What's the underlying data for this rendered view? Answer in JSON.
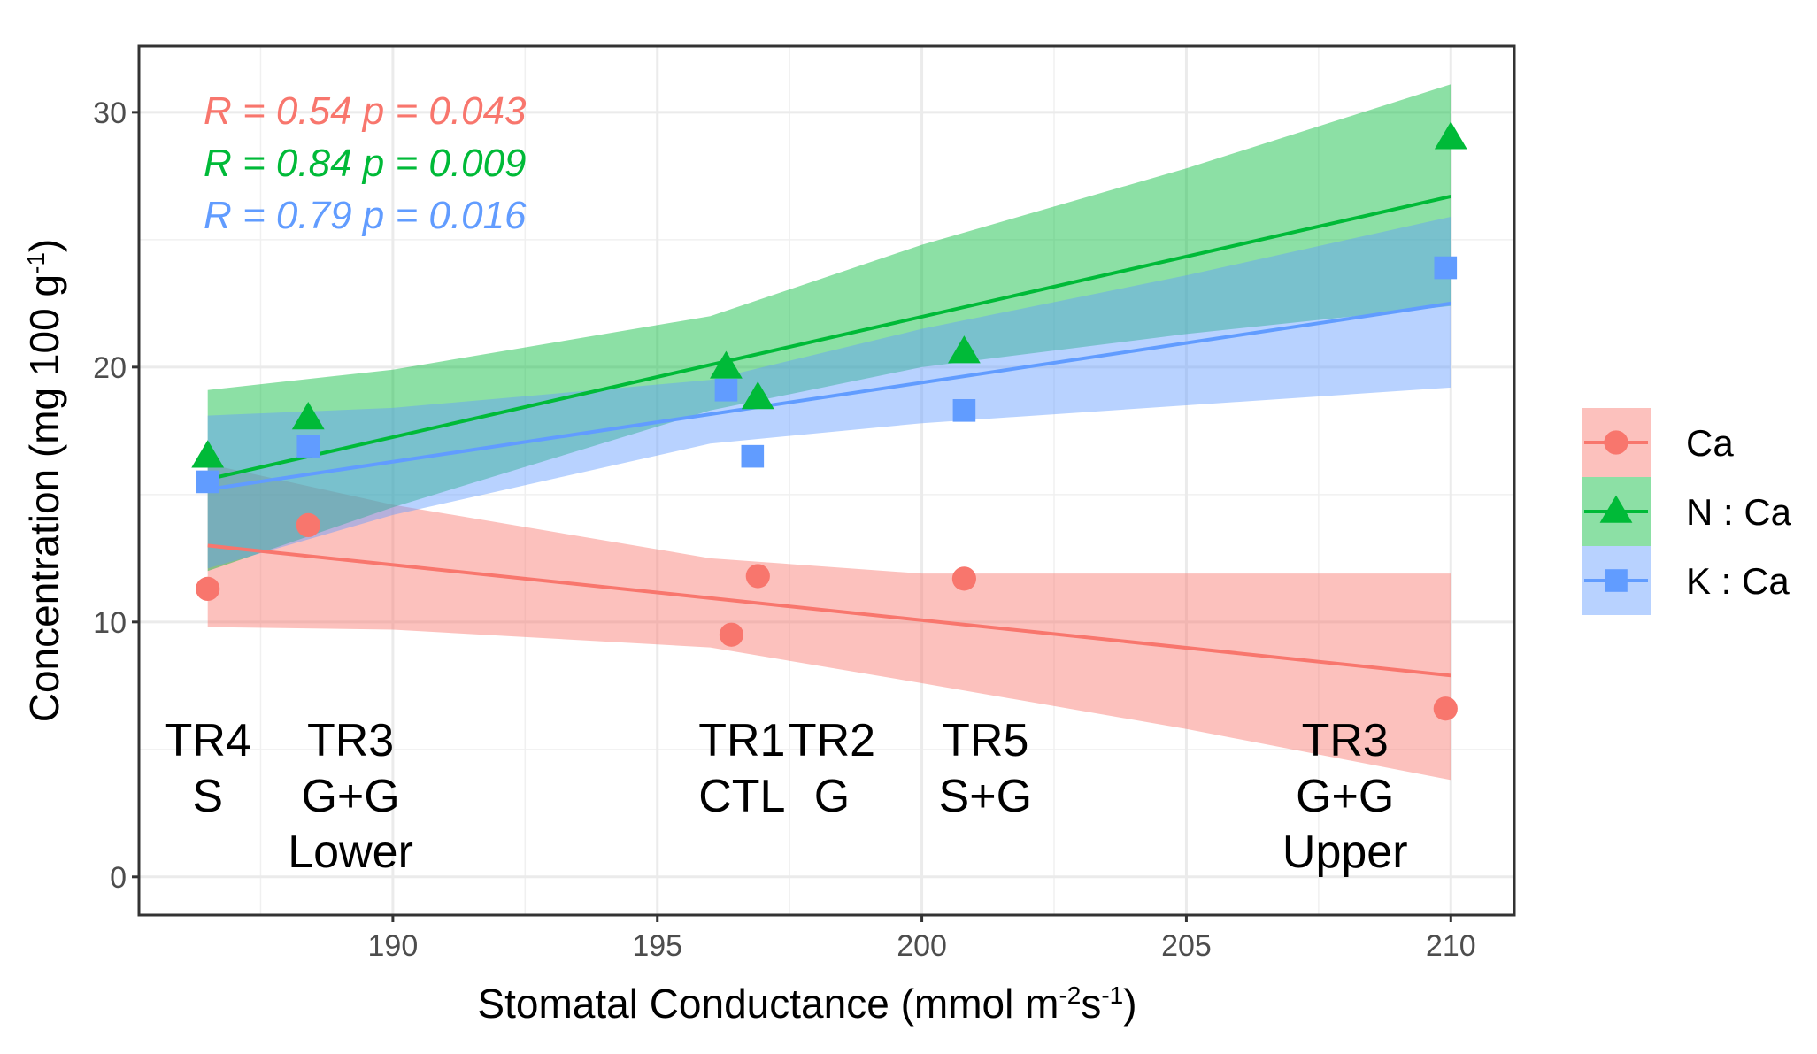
{
  "chart_data": {
    "type": "scatter",
    "xlabel": "Stomatal Conductance (mmol m",
    "xlabel_sup1": "-2",
    "xlabel_mid": "s",
    "xlabel_sup2": "-1",
    "xlabel_end": ")",
    "ylabel": "Concentration (mg 100 g",
    "ylabel_sup": "-1",
    "ylabel_end": ")",
    "xlim": [
      185.2,
      211.2
    ],
    "ylim": [
      -1.5,
      32.6
    ],
    "xticks": [
      190,
      195,
      200,
      205,
      210
    ],
    "xtick_labels": [
      "190",
      "195",
      "200",
      "205",
      "210"
    ],
    "yticks": [
      0,
      10,
      20,
      30
    ],
    "ytick_labels": [
      "0",
      "10",
      "20",
      "30"
    ],
    "grid": true,
    "legend_position": "right",
    "series": [
      {
        "name": "Ca",
        "color": "#F8766D",
        "marker": "circle",
        "x": [
          186.5,
          188.4,
          196.4,
          196.9,
          200.8,
          209.9
        ],
        "y": [
          11.3,
          13.8,
          9.5,
          11.8,
          11.7,
          6.6
        ],
        "fit": {
          "x": [
            186.5,
            210
          ],
          "y": [
            13.0,
            7.9
          ]
        },
        "band": {
          "x": [
            186.5,
            190,
            196,
            200,
            205,
            210
          ],
          "lower": [
            9.8,
            9.7,
            9.0,
            7.6,
            5.8,
            3.8
          ],
          "upper": [
            16.2,
            14.6,
            12.5,
            11.9,
            11.9,
            11.9
          ]
        },
        "stat": "R = 0.54  p = 0.043"
      },
      {
        "name": "N : Ca",
        "color": "#00BA38",
        "marker": "triangle",
        "x": [
          186.5,
          188.4,
          196.3,
          196.9,
          200.8,
          210.0
        ],
        "y": [
          16.5,
          18.0,
          20.0,
          18.8,
          20.6,
          29.0
        ],
        "fit": {
          "x": [
            186.5,
            210
          ],
          "y": [
            15.6,
            26.7
          ]
        },
        "band": {
          "x": [
            186.5,
            190,
            196,
            200,
            205,
            210
          ],
          "lower": [
            12.0,
            14.5,
            18.3,
            20.0,
            21.3,
            22.4
          ],
          "upper": [
            19.1,
            19.9,
            22.0,
            24.8,
            27.8,
            31.1
          ]
        },
        "stat": "R = 0.84  p = 0.009"
      },
      {
        "name": "K : Ca",
        "color": "#619CFF",
        "marker": "square",
        "x": [
          186.5,
          188.4,
          196.3,
          196.8,
          200.8,
          209.9
        ],
        "y": [
          15.5,
          16.9,
          19.1,
          16.5,
          18.3,
          23.9
        ],
        "fit": {
          "x": [
            186.5,
            210
          ],
          "y": [
            15.2,
            22.5
          ]
        },
        "band": {
          "x": [
            186.5,
            190,
            196,
            200,
            205,
            210
          ],
          "lower": [
            12.1,
            14.2,
            17.0,
            17.8,
            18.5,
            19.2
          ],
          "upper": [
            18.1,
            18.4,
            19.5,
            21.5,
            23.6,
            25.9
          ]
        },
        "stat": "R = 0.79  p = 0.016"
      }
    ],
    "annotations": [
      {
        "x": 186.5,
        "lines": [
          "TR4",
          "S"
        ]
      },
      {
        "x": 189.2,
        "lines": [
          "TR3",
          "G+G",
          "Lower"
        ]
      },
      {
        "x": 196.6,
        "lines": [
          "TR1",
          "CTL"
        ]
      },
      {
        "x": 198.3,
        "lines": [
          "TR2",
          "G"
        ]
      },
      {
        "x": 201.2,
        "lines": [
          "TR5",
          "S+G"
        ]
      },
      {
        "x": 208.0,
        "lines": [
          "TR3",
          "G+G",
          "Upper"
        ]
      }
    ]
  }
}
